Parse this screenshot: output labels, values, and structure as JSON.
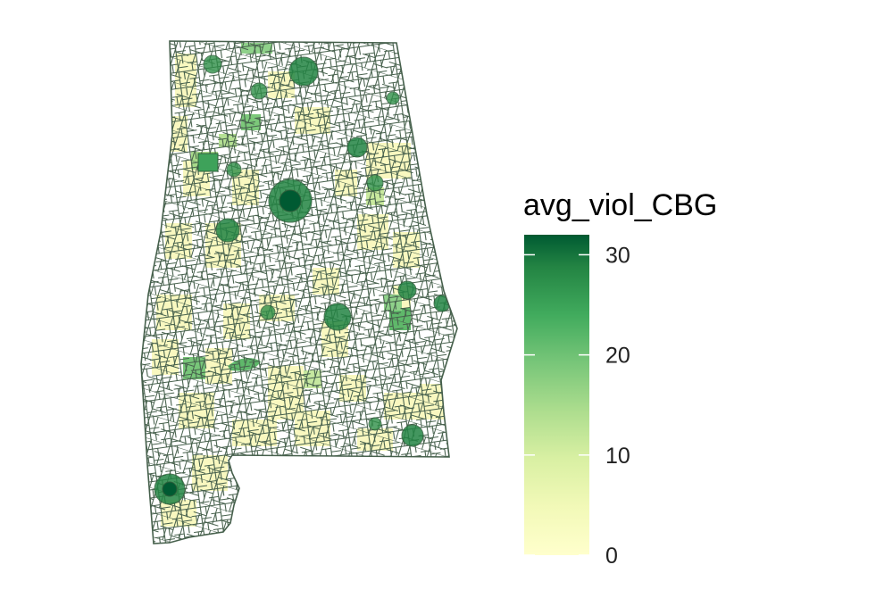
{
  "legend": {
    "title": "avg_viol_CBG",
    "min": 0,
    "max": 32,
    "ticks": [
      0,
      10,
      20,
      30
    ],
    "tick_labels": [
      "0",
      "10",
      "20",
      "30"
    ],
    "color_low": "#FFFFCC",
    "color_mid": "#41AB5D",
    "color_high": "#005A32"
  },
  "map": {
    "region": "Alabama census block groups",
    "boundary_color": "#46604C",
    "missing_fill": "#FFFFFF",
    "hotspots": [
      {
        "name": "hotspot-birmingham",
        "value": 31
      },
      {
        "name": "hotspot-huntsville",
        "value": 28
      },
      {
        "name": "hotspot-montgomery",
        "value": 29
      },
      {
        "name": "hotspot-mobile",
        "value": 30
      },
      {
        "name": "hotspot-tuscaloosa",
        "value": 27
      },
      {
        "name": "hotspot-gadsden",
        "value": 24
      },
      {
        "name": "hotspot-anniston",
        "value": 22
      },
      {
        "name": "hotspot-dothan",
        "value": 25
      },
      {
        "name": "hotspot-auburn",
        "value": 24
      },
      {
        "name": "hotspot-phenix-city",
        "value": 26
      },
      {
        "name": "hotspot-florence",
        "value": 22
      },
      {
        "name": "hotspot-decatur",
        "value": 20
      },
      {
        "name": "hotspot-selma",
        "value": 18
      },
      {
        "name": "hotspot-jasper",
        "value": 18
      },
      {
        "name": "hotspot-enterprise",
        "value": 16
      },
      {
        "name": "hotspot-fort-payne",
        "value": 17
      }
    ]
  }
}
